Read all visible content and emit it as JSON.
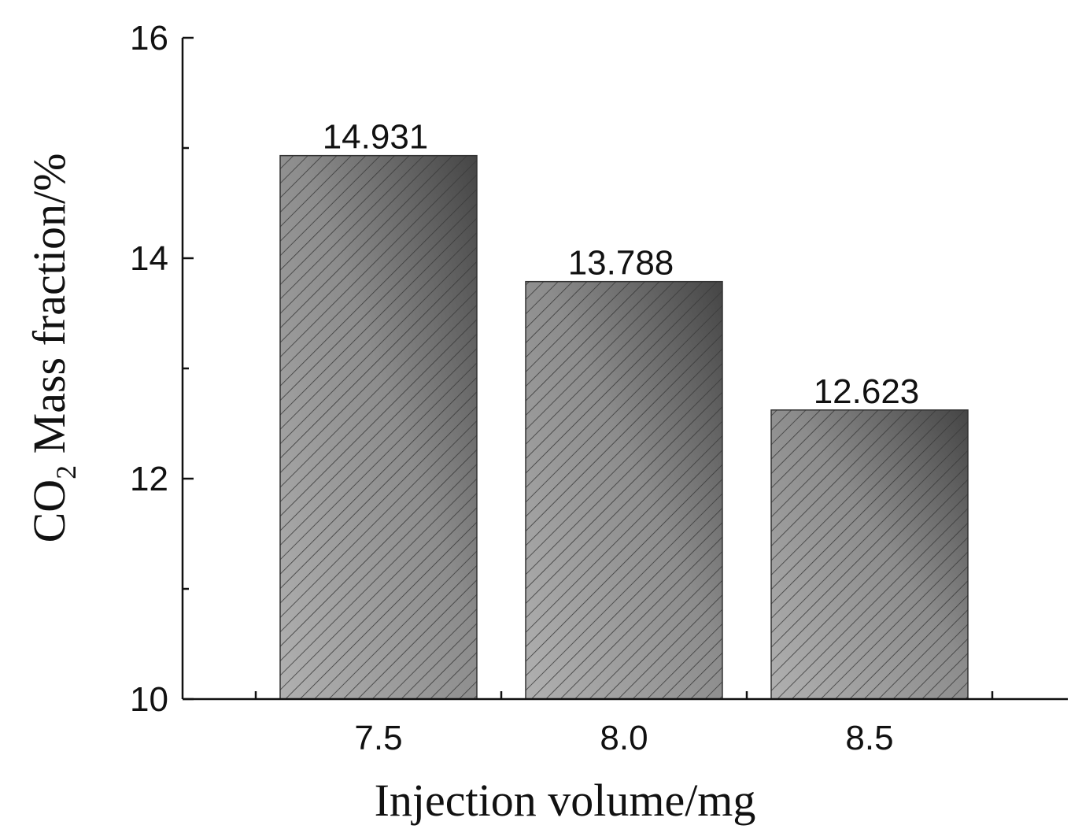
{
  "chart_data": {
    "type": "bar",
    "categories": [
      "7.5",
      "8.0",
      "8.5"
    ],
    "values": [
      14.931,
      13.788,
      12.623
    ],
    "data_labels": [
      "14.931",
      "13.788",
      "12.623"
    ],
    "title": "",
    "xlabel": "Injection volume/mg",
    "ylabel_main": "CO",
    "ylabel_sub": "2",
    "ylabel_rest": " Mass fraction/%",
    "ylim": [
      10,
      16
    ],
    "yticks": [
      10,
      12,
      14,
      16
    ],
    "ytick_labels": [
      "10",
      "12",
      "14",
      "16"
    ],
    "grid": false,
    "legend": "none",
    "bar_fill": "hatched gray gradient",
    "colors": {
      "bar_light": "#a8a8a8",
      "bar_dark": "#4a4a4a",
      "hatch": "#3a3a3a",
      "axis": "#111111"
    }
  }
}
